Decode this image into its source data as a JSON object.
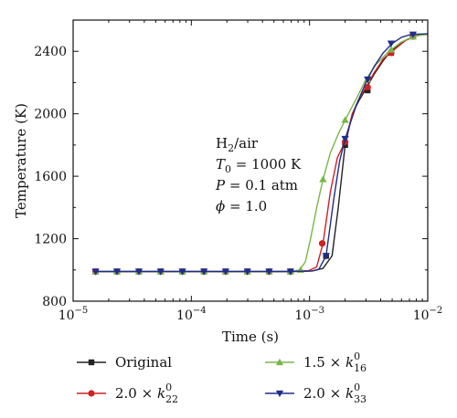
{
  "chart_data": {
    "type": "line",
    "title": "",
    "xlabel": "Time (s)",
    "ylabel": "Temperature (K)",
    "xscale": "log",
    "xlim": [
      1e-05,
      0.01
    ],
    "ylim": [
      800,
      2600
    ],
    "grid": false,
    "x_ticks": [
      {
        "value": 1e-05,
        "base": "10",
        "exp": "−5"
      },
      {
        "value": 0.0001,
        "base": "10",
        "exp": "−4"
      },
      {
        "value": 0.001,
        "base": "10",
        "exp": "−3"
      },
      {
        "value": 0.01,
        "base": "10",
        "exp": "−2"
      }
    ],
    "y_ticks": [
      {
        "value": 800,
        "label": "800"
      },
      {
        "value": 1200,
        "label": "1200"
      },
      {
        "value": 1600,
        "label": "1600"
      },
      {
        "value": 2000,
        "label": "2000"
      },
      {
        "value": 2400,
        "label": "2400"
      }
    ],
    "annotation": {
      "mixture": {
        "base": "H",
        "sub": "2",
        "rest": "/air"
      },
      "t0": {
        "sym": "T",
        "sub": "0",
        "rest": " = 1000 K"
      },
      "pressure": {
        "sym": "P",
        "rest": " = 0.1 atm"
      },
      "phi": {
        "sym": "ϕ",
        "rest": " = 1.0"
      }
    },
    "legend_placement": "bottom",
    "series": [
      {
        "name": "Original",
        "legend": {
          "prefix": "Original"
        },
        "color": "#222222",
        "marker": "square",
        "x": [
          1.55e-05,
          2.35e-05,
          3.6e-05,
          5.5e-05,
          8.4e-05,
          0.000128,
          0.000195,
          0.000298,
          0.000455,
          0.00069,
          0.00105,
          0.0013,
          0.00155,
          0.00175,
          0.002,
          0.0023,
          0.0026,
          0.003,
          0.0035,
          0.0042,
          0.005,
          0.0065,
          0.008,
          0.01
        ],
        "y": [
          990,
          990,
          990,
          990,
          990,
          990,
          990,
          990,
          990,
          990,
          993,
          1010,
          1090,
          1400,
          1800,
          2000,
          2080,
          2160,
          2250,
          2340,
          2410,
          2470,
          2500,
          2510
        ],
        "marker_x": [
          1.55e-05,
          2.35e-05,
          3.6e-05,
          5.5e-05,
          8.4e-05,
          0.000128,
          0.000195,
          0.000298,
          0.000455,
          0.00069,
          0.00138,
          0.002,
          0.0031,
          0.0049,
          0.0075
        ],
        "marker_y": [
          990,
          990,
          990,
          990,
          990,
          990,
          990,
          990,
          990,
          990,
          1090,
          1800,
          2150,
          2390,
          2495
        ]
      },
      {
        "name": "2.0 × k⁰₂₂",
        "legend": {
          "prefix": "2.0 × ",
          "sym": "k",
          "sub": "22",
          "sup": "0"
        },
        "color": "#d02020",
        "marker": "circle",
        "x": [
          1.55e-05,
          2.35e-05,
          3.6e-05,
          5.5e-05,
          8.4e-05,
          0.000128,
          0.000195,
          0.000298,
          0.000455,
          0.00069,
          0.00098,
          0.00115,
          0.0013,
          0.0015,
          0.00172,
          0.002,
          0.0023,
          0.0026,
          0.003,
          0.0035,
          0.0042,
          0.005,
          0.0065,
          0.008,
          0.01
        ],
        "y": [
          990,
          990,
          990,
          990,
          990,
          990,
          990,
          990,
          990,
          990,
          995,
          1020,
          1170,
          1500,
          1720,
          1820,
          2000,
          2090,
          2170,
          2260,
          2350,
          2400,
          2470,
          2500,
          2510
        ],
        "marker_x": [
          1.55e-05,
          2.35e-05,
          3.6e-05,
          5.5e-05,
          8.4e-05,
          0.000128,
          0.000195,
          0.000298,
          0.000455,
          0.00069,
          0.00128,
          0.002,
          0.0031,
          0.0049,
          0.0075
        ],
        "marker_y": [
          990,
          990,
          990,
          990,
          990,
          990,
          990,
          990,
          990,
          990,
          1170,
          1820,
          2170,
          2390,
          2495
        ]
      },
      {
        "name": "1.5 × k⁰₁₆",
        "legend": {
          "prefix": "1.5 × ",
          "sym": "k",
          "sub": "16",
          "sup": "0"
        },
        "color": "#7ab648",
        "marker": "triangle-up",
        "x": [
          1.55e-05,
          2.35e-05,
          3.6e-05,
          5.5e-05,
          8.4e-05,
          0.000128,
          0.000195,
          0.000298,
          0.000455,
          0.00069,
          0.00082,
          0.00092,
          0.00102,
          0.00115,
          0.0013,
          0.0015,
          0.00175,
          0.002,
          0.0025,
          0.003,
          0.0037,
          0.0047,
          0.006,
          0.0075,
          0.01
        ],
        "y": [
          990,
          990,
          990,
          990,
          990,
          990,
          990,
          990,
          990,
          990,
          1000,
          1050,
          1200,
          1400,
          1580,
          1750,
          1870,
          1960,
          2100,
          2220,
          2320,
          2400,
          2460,
          2495,
          2510
        ],
        "marker_x": [
          1.55e-05,
          2.35e-05,
          3.6e-05,
          5.5e-05,
          8.4e-05,
          0.000128,
          0.000195,
          0.000298,
          0.000455,
          0.00069,
          0.00084,
          0.0013,
          0.002,
          0.0031,
          0.0049,
          0.0075
        ],
        "marker_y": [
          990,
          990,
          990,
          990,
          990,
          990,
          990,
          990,
          990,
          990,
          1000,
          1580,
          1960,
          2220,
          2410,
          2495
        ]
      },
      {
        "name": "2.0 × k⁰₃₃",
        "legend": {
          "prefix": "2.0 × ",
          "sym": "k",
          "sub": "33",
          "sup": "0"
        },
        "color": "#1f2d8a",
        "marker": "triangle-down",
        "x": [
          1.55e-05,
          2.35e-05,
          3.6e-05,
          5.5e-05,
          8.4e-05,
          0.000128,
          0.000195,
          0.000298,
          0.000455,
          0.00069,
          0.00105,
          0.0012,
          0.00138,
          0.0016,
          0.0018,
          0.002,
          0.0025,
          0.003,
          0.0035,
          0.0042,
          0.005,
          0.006,
          0.007,
          0.008,
          0.01
        ],
        "y": [
          990,
          990,
          990,
          990,
          990,
          990,
          990,
          990,
          990,
          990,
          993,
          1005,
          1090,
          1450,
          1700,
          1840,
          2060,
          2200,
          2300,
          2390,
          2450,
          2490,
          2505,
          2510,
          2512
        ],
        "marker_x": [
          1.55e-05,
          2.35e-05,
          3.6e-05,
          5.5e-05,
          8.4e-05,
          0.000128,
          0.000195,
          0.000298,
          0.000455,
          0.00069,
          0.00138,
          0.002,
          0.0031,
          0.0049,
          0.0075
        ],
        "marker_y": [
          990,
          990,
          990,
          990,
          990,
          990,
          990,
          990,
          990,
          990,
          1090,
          1840,
          2220,
          2450,
          2508
        ]
      }
    ]
  }
}
